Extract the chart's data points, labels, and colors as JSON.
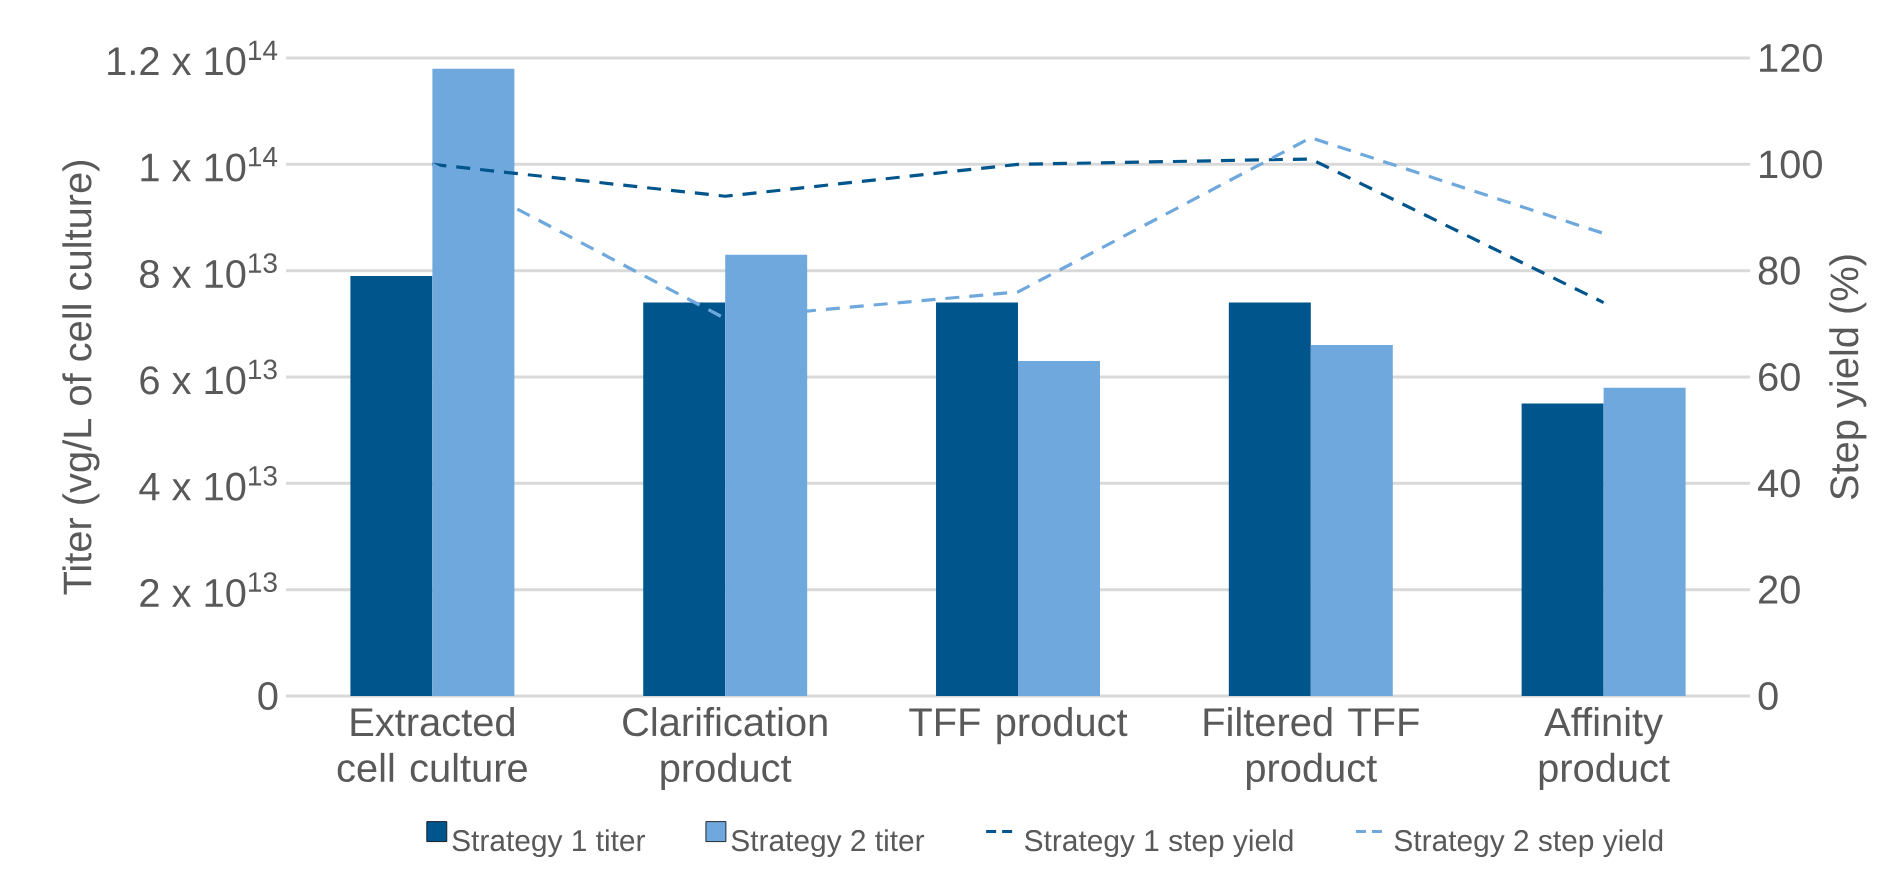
{
  "chart_data": {
    "type": "bar",
    "ylabel": "Titer (vg/L of cell culture)",
    "y2label": "Step yield (%)",
    "categories": [
      "Extracted cell culture",
      "Clarification product",
      "TFF product",
      "Filtered TFF product",
      "Affinity product"
    ],
    "series": [
      {
        "name": "Strategy 1 titer",
        "color": "#00558c",
        "values": [
          79000000000000.0,
          74000000000000.0,
          74000000000000.0,
          74000000000000.0,
          55000000000000.0
        ]
      },
      {
        "name": "Strategy 2 titer",
        "color": "#6fa8dc",
        "values": [
          118000000000000.0,
          83000000000000.0,
          63000000000000.0,
          66000000000000.0,
          58000000000000.0
        ]
      },
      {
        "name": "Strategy 1 step yield",
        "type": "line",
        "axis": "y2",
        "line_style": "dashed",
        "color": "#00558c",
        "values": [
          100,
          94,
          100,
          101,
          74
        ]
      },
      {
        "name": "Strategy 2 step yield",
        "type": "line",
        "axis": "y2",
        "line_style": "dashed",
        "color": "#6fa8dc",
        "values": [
          100,
          71,
          76,
          105,
          87
        ]
      }
    ],
    "ylim": [
      0,
      120000000000000.0
    ],
    "yticks": [
      0,
      {
        "value": 20000000000000.0,
        "label": "2 x 10$^{13}$"
      },
      {
        "value": 40000000000000.0,
        "label": "4 x 10$^{13}$"
      },
      {
        "value": 60000000000000.0,
        "label": "6 x 10$^{13}$"
      },
      {
        "value": 80000000000000.0,
        "label": "8 x 10$^{13}$"
      },
      {
        "value": 100000000000000.0,
        "label": "1 x 10$^{14}$"
      },
      {
        "value": 120000000000000.0,
        "label": "1.2 x 10$^{14}$"
      }
    ],
    "y2lim": [
      0,
      120
    ],
    "y2ticks": [
      0,
      20,
      40,
      60,
      80,
      100,
      120
    ],
    "grid": "y",
    "legend": "bottom"
  }
}
